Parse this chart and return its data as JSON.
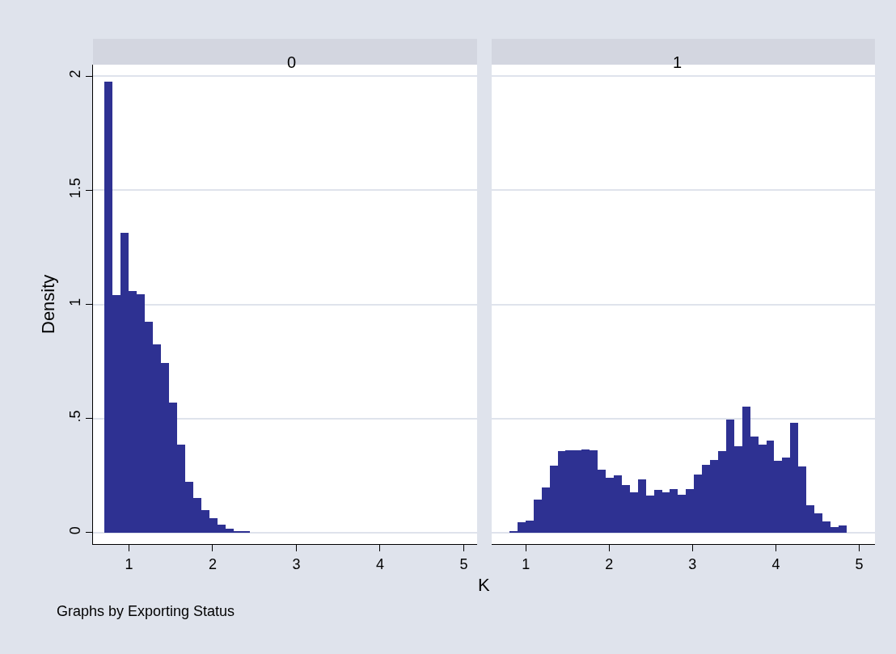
{
  "chart_data": [
    {
      "type": "histogram",
      "title": "0",
      "ylabel": "Density",
      "xlabel": "K",
      "color": "#2e3192",
      "bins": [
        0.709,
        0.806,
        0.902,
        0.999,
        1.095,
        1.192,
        1.289,
        1.385,
        1.482,
        1.578,
        1.675,
        1.772,
        1.868,
        1.965,
        2.061,
        2.158,
        2.255,
        2.351,
        2.448
      ],
      "values": [
        1.975,
        1.041,
        1.315,
        1.06,
        1.046,
        0.925,
        0.826,
        0.744,
        0.571,
        0.385,
        0.222,
        0.152,
        0.1,
        0.062,
        0.035,
        0.017,
        0.008,
        0.006
      ],
      "xlim": [
        0.57,
        5.16
      ],
      "xticks": [
        1,
        2,
        3,
        4,
        5
      ],
      "ylim": [
        -0.05,
        2.05
      ],
      "yticks": [
        {
          "value": 0,
          "label": "0"
        },
        {
          "value": 0.5,
          "label": ".5"
        },
        {
          "value": 1,
          "label": "1"
        },
        {
          "value": 1.5,
          "label": "1.5"
        },
        {
          "value": 2,
          "label": "2"
        }
      ],
      "grid": "y",
      "annotations": [
        "Graphs by Exporting Status"
      ]
    },
    {
      "type": "histogram",
      "title": "1",
      "color": "#2e3192",
      "bins": [
        0.803,
        0.899,
        0.996,
        1.092,
        1.188,
        1.285,
        1.381,
        1.477,
        1.573,
        1.67,
        1.766,
        1.862,
        1.959,
        2.055,
        2.151,
        2.248,
        2.344,
        2.44,
        2.536,
        2.633,
        2.729,
        2.825,
        2.922,
        3.018,
        3.114,
        3.211,
        3.307,
        3.403,
        3.499,
        3.596,
        3.692,
        3.788,
        3.885,
        3.981,
        4.077,
        4.174,
        4.27,
        4.366,
        4.462,
        4.559,
        4.655,
        4.751,
        4.848
      ],
      "values": [
        0.007,
        0.044,
        0.051,
        0.144,
        0.197,
        0.295,
        0.357,
        0.362,
        0.362,
        0.366,
        0.361,
        0.275,
        0.242,
        0.25,
        0.21,
        0.177,
        0.232,
        0.162,
        0.188,
        0.177,
        0.191,
        0.167,
        0.191,
        0.254,
        0.297,
        0.318,
        0.357,
        0.494,
        0.38,
        0.553,
        0.422,
        0.384,
        0.404,
        0.316,
        0.328,
        0.481,
        0.289,
        0.12,
        0.085,
        0.05,
        0.025,
        0.032
      ],
      "xlim": [
        0.59,
        5.19
      ],
      "xticks": [
        1,
        2,
        3,
        4,
        5
      ],
      "ylim": [
        -0.05,
        2.05
      ],
      "yticks": [
        {
          "value": 0,
          "label": null
        },
        {
          "value": 0.5,
          "label": null
        },
        {
          "value": 1,
          "label": null
        },
        {
          "value": 1.5,
          "label": null
        },
        {
          "value": 2,
          "label": null
        }
      ],
      "grid": "y",
      "tick_labels": "x"
    }
  ]
}
